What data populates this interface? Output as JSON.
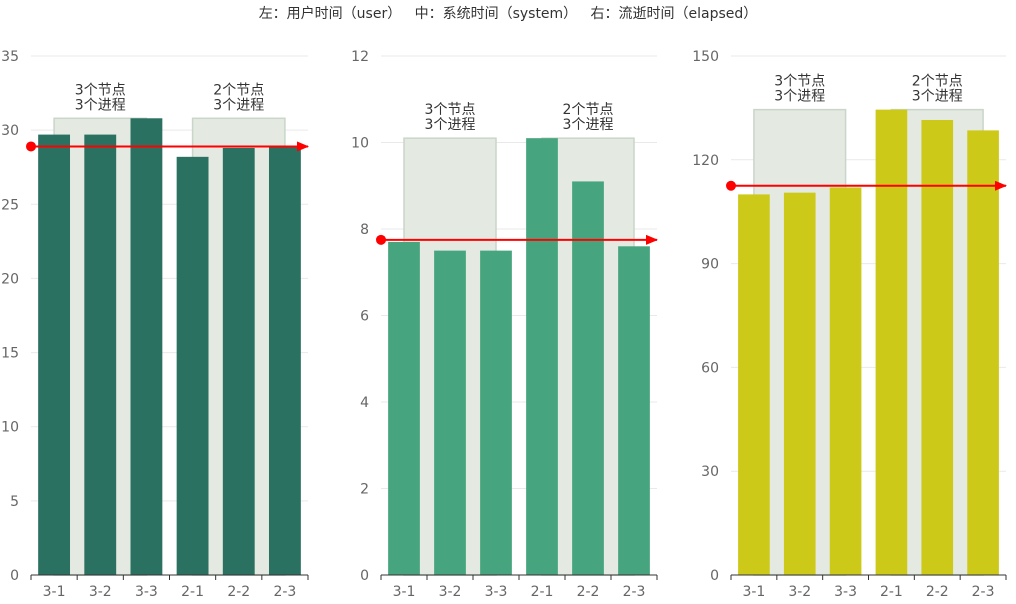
{
  "title": "左：用户时间（user）   中：系统时间（system）   右：流逝时间（elapsed）",
  "colors": {
    "user": "#2b7161",
    "system": "#46a57e",
    "elapsed": "#cdc918",
    "group_band": "#e4e9e1",
    "group_band_stroke": "#c9d6c9",
    "reference_line": "#ff0000",
    "axis_text": "#666666",
    "axis_line": "#333333",
    "grid": "#e9e9e9"
  },
  "chart_data": [
    {
      "type": "bar",
      "name": "user",
      "categories": [
        "3-1",
        "3-2",
        "3-3",
        "2-1",
        "2-2",
        "2-3"
      ],
      "values": [
        29.7,
        29.7,
        30.8,
        28.2,
        28.8,
        28.9
      ],
      "ylim": [
        0,
        35
      ],
      "yticks": [
        0,
        5,
        10,
        15,
        20,
        25,
        30,
        35
      ],
      "reference_value": 28.9,
      "groups": [
        {
          "label": "3个节点\n3个进程",
          "categories": [
            "3-1",
            "3-2",
            "3-3"
          ],
          "band_top": 30.8
        },
        {
          "label": "2个节点\n3个进程",
          "categories": [
            "2-1",
            "2-2",
            "2-3"
          ],
          "band_top": 30.8
        }
      ],
      "grid": true
    },
    {
      "type": "bar",
      "name": "system",
      "categories": [
        "3-1",
        "3-2",
        "3-3",
        "2-1",
        "2-2",
        "2-3"
      ],
      "values": [
        7.7,
        7.5,
        7.5,
        10.1,
        9.1,
        7.6
      ],
      "ylim": [
        0,
        12
      ],
      "yticks": [
        0,
        2,
        4,
        6,
        8,
        10,
        12
      ],
      "reference_value": 7.75,
      "groups": [
        {
          "label": "3个节点\n3个进程",
          "categories": [
            "3-1",
            "3-2",
            "3-3"
          ],
          "band_top": 10.1
        },
        {
          "label": "2个节点\n3个进程",
          "categories": [
            "2-1",
            "2-2",
            "2-3"
          ],
          "band_top": 10.1
        }
      ],
      "grid": true
    },
    {
      "type": "bar",
      "name": "elapsed",
      "categories": [
        "3-1",
        "3-2",
        "3-3",
        "2-1",
        "2-2",
        "2-3"
      ],
      "values": [
        110,
        110.5,
        112,
        134.5,
        131.5,
        128.5
      ],
      "ylim": [
        0,
        150
      ],
      "yticks": [
        0,
        30,
        60,
        90,
        120,
        150
      ],
      "reference_value": 112.5,
      "groups": [
        {
          "label": "3个节点\n3个进程",
          "categories": [
            "3-1",
            "3-2",
            "3-3"
          ],
          "band_top": 134.5
        },
        {
          "label": "2个节点\n3个进程",
          "categories": [
            "2-1",
            "2-2",
            "2-3"
          ],
          "band_top": 134.5
        }
      ],
      "grid": true
    }
  ]
}
